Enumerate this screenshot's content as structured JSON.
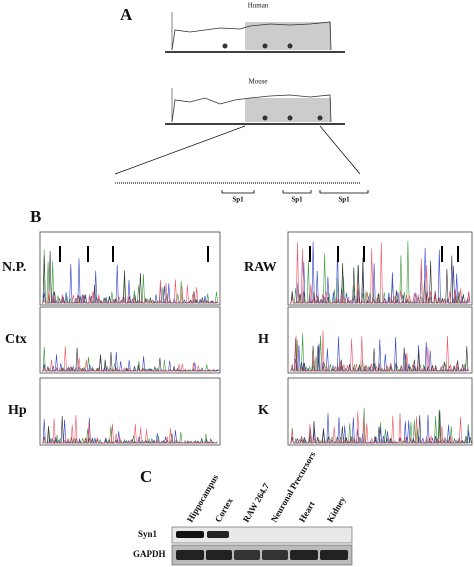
{
  "panel_a": {
    "label": "A",
    "plots": [
      "Human",
      "Mouse"
    ],
    "motifs": [
      "Sp1",
      "Sp1",
      "Sp1"
    ]
  },
  "panel_b": {
    "label": "B",
    "left_rows": [
      "N.P.",
      "Ctx",
      "Hp"
    ],
    "right_rows": [
      "RAW",
      "H",
      "K"
    ]
  },
  "panel_c": {
    "label": "C",
    "lanes": [
      "Hippocampus",
      "Cortex",
      "RAW 264.7",
      "Neuronal Precursors",
      "Heart",
      "Kidney"
    ],
    "blots": [
      "Syn1",
      "GAPDH"
    ]
  }
}
